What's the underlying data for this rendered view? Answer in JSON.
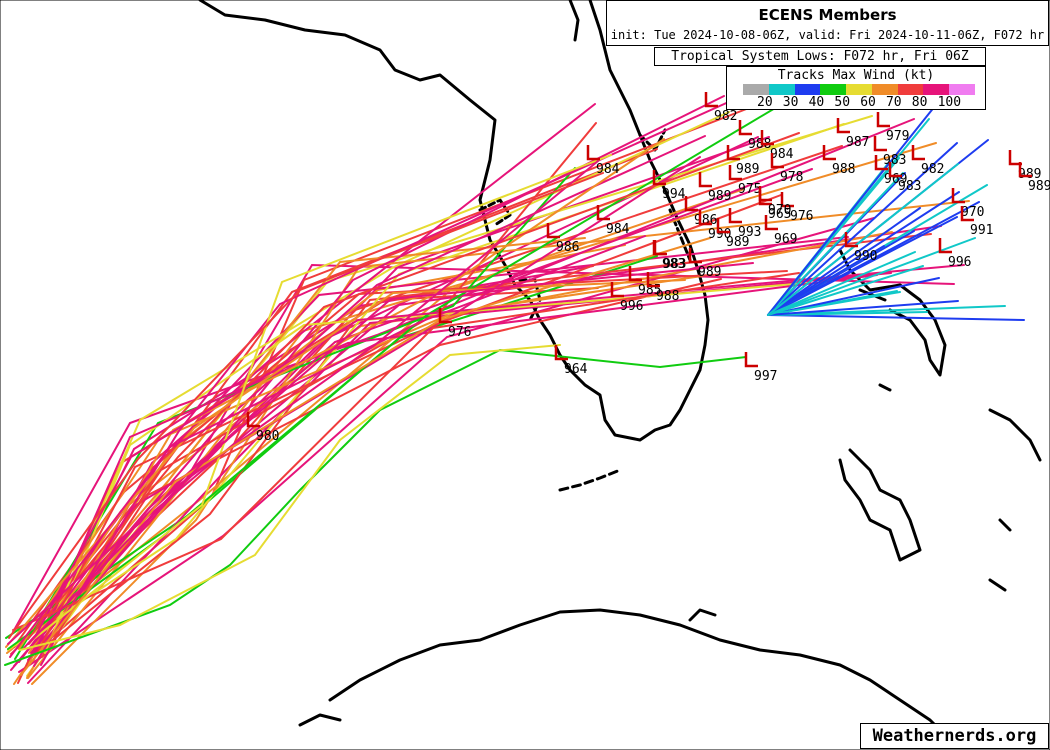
{
  "header": {
    "title": "ECENS Members",
    "subtitle": "init: Tue 2024-10-08-06Z, valid: Fri 2024-10-11-06Z, F072 hr",
    "lows_label": "Tropical System Lows: F072 hr, Fri 06Z"
  },
  "legend": {
    "title": "Tracks Max Wind (kt)",
    "labels": [
      "20",
      "30",
      "40",
      "50",
      "60",
      "70",
      "80",
      "100"
    ],
    "colors": [
      "#aaaaaa",
      "#10c8c8",
      "#1e3cf0",
      "#10cc10",
      "#e6dc32",
      "#f08c28",
      "#f03c3c",
      "#e6147a",
      "#f07cf0"
    ]
  },
  "watermark": "Weathernerds.org",
  "lows": [
    {
      "label": "982"
    },
    {
      "label": "988"
    },
    {
      "label": "979"
    },
    {
      "label": "987"
    },
    {
      "label": "984"
    },
    {
      "label": "989"
    },
    {
      "label": "984"
    },
    {
      "label": "983"
    },
    {
      "label": "988"
    },
    {
      "label": "982"
    },
    {
      "label": "994"
    },
    {
      "label": "989"
    },
    {
      "label": "975"
    },
    {
      "label": "978"
    },
    {
      "label": "969"
    },
    {
      "label": "983"
    },
    {
      "label": "989"
    },
    {
      "label": "983"
    },
    {
      "label": "970"
    },
    {
      "label": "976"
    },
    {
      "label": "965"
    },
    {
      "label": "986"
    },
    {
      "label": "990"
    },
    {
      "label": "993"
    },
    {
      "label": "970"
    },
    {
      "label": "984"
    },
    {
      "label": "986"
    },
    {
      "label": "989"
    },
    {
      "label": "969"
    },
    {
      "label": "991"
    },
    {
      "label": "990"
    },
    {
      "label": "983"
    },
    {
      "label": "989"
    },
    {
      "label": "996"
    },
    {
      "label": "985"
    },
    {
      "label": "988"
    },
    {
      "label": "996"
    },
    {
      "label": "976"
    },
    {
      "label": "964"
    },
    {
      "label": "997"
    },
    {
      "label": "980"
    },
    {
      "label": "989"
    }
  ]
}
